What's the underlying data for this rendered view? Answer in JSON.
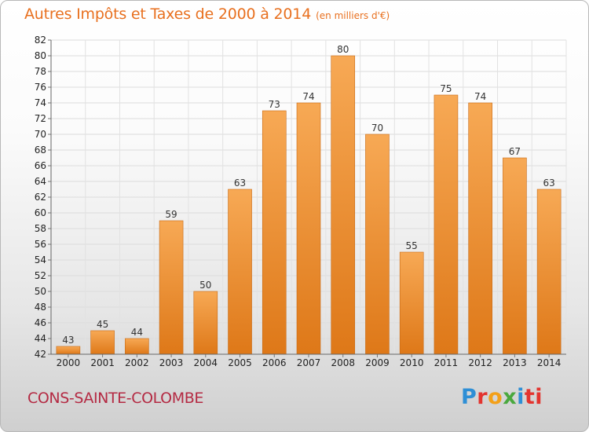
{
  "title": "Autres Impôts et Taxes de 2000 à 2014",
  "unit": "(en milliers d'€)",
  "commune": "CONS-SAINTE-COLOMBE",
  "logo": [
    "P",
    "r",
    "o",
    "x",
    "i",
    "ti"
  ],
  "colors": {
    "bar_top": "#f7a955",
    "bar_bottom": "#de7818",
    "title": "#e8701f",
    "commune": "#b42a43"
  },
  "chart_data": {
    "type": "bar",
    "categories": [
      "2000",
      "2001",
      "2002",
      "2003",
      "2004",
      "2005",
      "2006",
      "2007",
      "2008",
      "2009",
      "2010",
      "2011",
      "2012",
      "2013",
      "2014"
    ],
    "values": [
      43,
      45,
      44,
      59,
      50,
      63,
      73,
      74,
      80,
      70,
      55,
      75,
      74,
      67,
      63
    ],
    "ylim": [
      42,
      82
    ],
    "yticks": [
      "42",
      "44",
      "46",
      "48",
      "50",
      "52",
      "54",
      "56",
      "58",
      "60",
      "62",
      "64",
      "66",
      "68",
      "70",
      "72",
      "74",
      "76",
      "78",
      "80",
      "82"
    ],
    "grid": true
  }
}
